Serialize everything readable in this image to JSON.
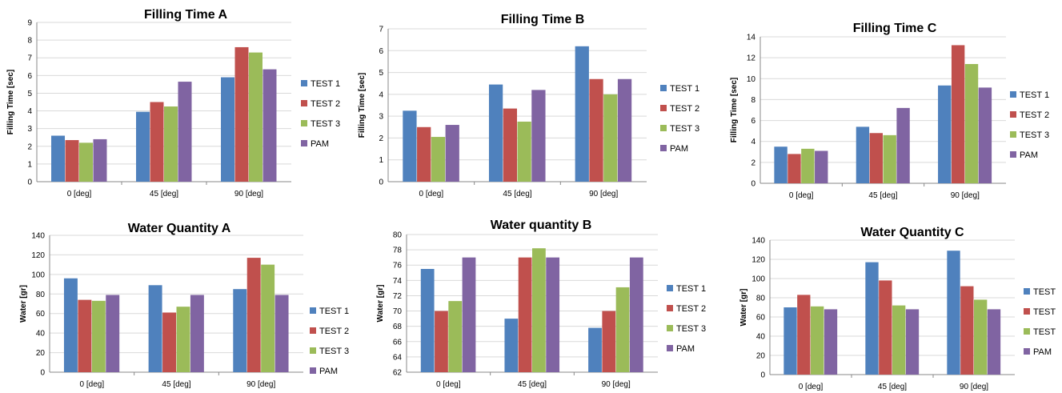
{
  "series_colors": [
    "#4f81bd",
    "#c0504d",
    "#9bbb59",
    "#8064a2"
  ],
  "chart_data": [
    {
      "type": "bar",
      "title": "Filling Time A",
      "ylabel": "Filling Time [sec]",
      "categories": [
        "0 [deg]",
        "45 [deg]",
        "90 [deg]"
      ],
      "ylim": [
        0,
        9
      ],
      "ystep": 1,
      "series": [
        {
          "name": "TEST 1",
          "values": [
            2.6,
            3.95,
            5.9
          ]
        },
        {
          "name": "TEST 2",
          "values": [
            2.35,
            4.5,
            7.6
          ]
        },
        {
          "name": "TEST 3",
          "values": [
            2.2,
            4.25,
            7.3
          ]
        },
        {
          "name": "PAM",
          "values": [
            2.4,
            5.65,
            6.35
          ]
        }
      ]
    },
    {
      "type": "bar",
      "title": "Filling Time B",
      "ylabel": "Filling Time [sec]",
      "categories": [
        "0 [deg]",
        "45 [deg]",
        "90 [deg]"
      ],
      "ylim": [
        0,
        7
      ],
      "ystep": 1,
      "series": [
        {
          "name": "TEST 1",
          "values": [
            3.25,
            4.45,
            6.2
          ]
        },
        {
          "name": "TEST 2",
          "values": [
            2.5,
            3.35,
            4.7
          ]
        },
        {
          "name": "TEST 3",
          "values": [
            2.05,
            2.75,
            4.0
          ]
        },
        {
          "name": "PAM",
          "values": [
            2.6,
            4.2,
            4.7
          ]
        }
      ]
    },
    {
      "type": "bar",
      "title": "Filling Time C",
      "ylabel": "Filling Time [sec]",
      "categories": [
        "0 [deg]",
        "45 [deg]",
        "90 [deg]"
      ],
      "ylim": [
        0,
        14
      ],
      "ystep": 2,
      "series": [
        {
          "name": "TEST 1",
          "values": [
            3.5,
            5.4,
            9.35
          ]
        },
        {
          "name": "TEST 2",
          "values": [
            2.8,
            4.8,
            13.2
          ]
        },
        {
          "name": "TEST 3",
          "values": [
            3.3,
            4.6,
            11.4
          ]
        },
        {
          "name": "PAM",
          "values": [
            3.1,
            7.2,
            9.15
          ]
        }
      ]
    },
    {
      "type": "bar",
      "title": "Water Quantity A",
      "ylabel": "Water [gr]",
      "categories": [
        "0 [deg]",
        "45 [deg]",
        "90 [deg]"
      ],
      "ylim": [
        0,
        140
      ],
      "ystep": 20,
      "series": [
        {
          "name": "TEST 1",
          "values": [
            96,
            89,
            85
          ]
        },
        {
          "name": "TEST 2",
          "values": [
            74,
            61,
            117
          ]
        },
        {
          "name": "TEST 3",
          "values": [
            73,
            67,
            110
          ]
        },
        {
          "name": "PAM",
          "values": [
            79,
            79,
            79
          ]
        }
      ]
    },
    {
      "type": "bar",
      "title": "Water quantity B",
      "ylabel": "Water [gr]",
      "categories": [
        "0 [deg]",
        "45 [deg]",
        "90 [deg]"
      ],
      "ylim": [
        62,
        80
      ],
      "ystep": 2,
      "series": [
        {
          "name": "TEST 1",
          "values": [
            75.5,
            69.0,
            67.8
          ]
        },
        {
          "name": "TEST 2",
          "values": [
            70.0,
            77.0,
            70.0
          ]
        },
        {
          "name": "TEST 3",
          "values": [
            71.3,
            78.2,
            73.1
          ]
        },
        {
          "name": "PAM",
          "values": [
            77.0,
            77.0,
            77.0
          ]
        }
      ]
    },
    {
      "type": "bar",
      "title": "Water Quantity C",
      "ylabel": "Water [gr]",
      "categories": [
        "0 [deg]",
        "45 [deg]",
        "90 [deg]"
      ],
      "ylim": [
        0,
        140
      ],
      "ystep": 20,
      "series": [
        {
          "name": "TEST",
          "values": [
            70,
            117,
            129
          ]
        },
        {
          "name": "TEST",
          "values": [
            83,
            98,
            92
          ]
        },
        {
          "name": "TEST",
          "values": [
            71,
            72,
            78
          ]
        },
        {
          "name": "PAM",
          "values": [
            68,
            68,
            68
          ]
        }
      ]
    }
  ]
}
